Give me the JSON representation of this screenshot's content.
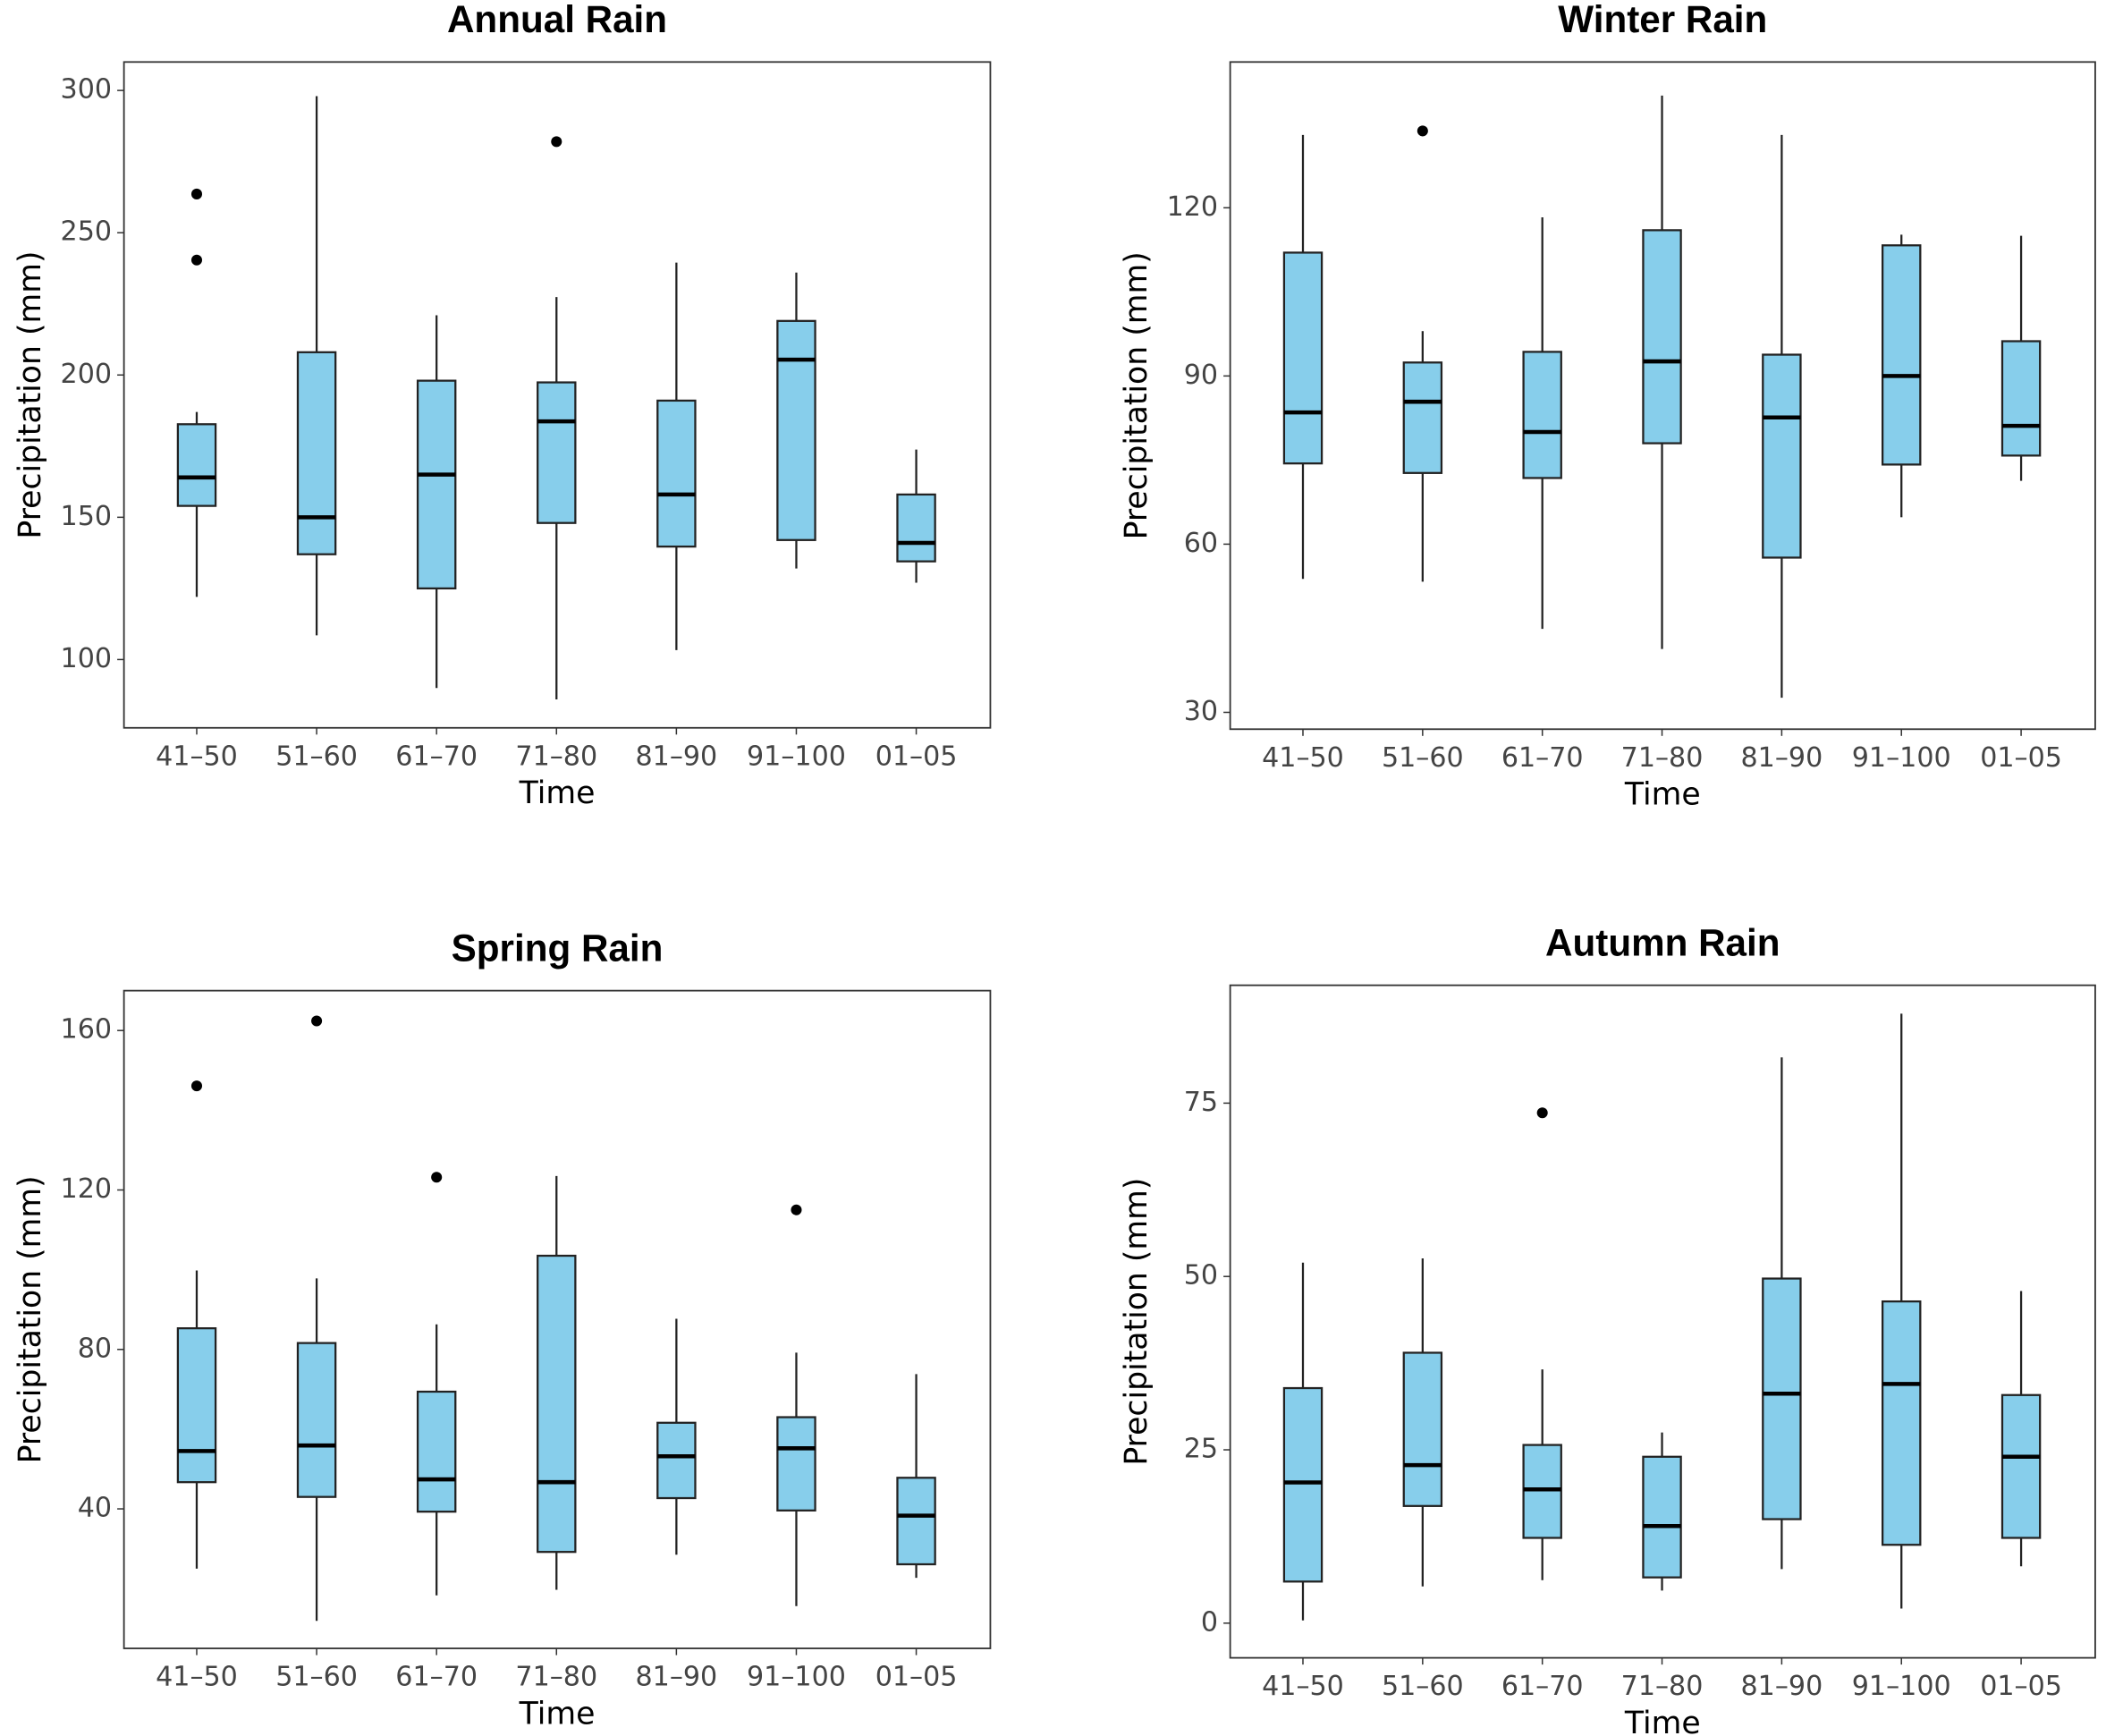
{
  "chart_data": [
    {
      "type": "box",
      "title": "Annual Rain",
      "x_label": "Time",
      "y_label": "Precipitation (mm)",
      "color": "#87ceeb",
      "categories": [
        "41–50",
        "51–60",
        "61–70",
        "71–80",
        "81–90",
        "91–100",
        "01–05"
      ],
      "whisker_low": [
        122,
        108.5,
        90,
        86,
        103.3,
        132,
        127
      ],
      "q1": [
        154,
        137,
        125,
        148,
        139.7,
        142,
        134.5
      ],
      "median": [
        164,
        150,
        165,
        183.7,
        158,
        205.4,
        141
      ],
      "q3": [
        182.7,
        208,
        198,
        197.4,
        191,
        219,
        158
      ],
      "whisker_high": [
        187,
        298,
        221,
        227.4,
        239.5,
        236,
        173.8
      ],
      "outliers": [
        [
          263.6,
          240.4
        ],
        [],
        [],
        [
          282
        ],
        [],
        [],
        []
      ],
      "ylim": [
        76,
        310
      ],
      "yticks": [
        100,
        150,
        200,
        250,
        300
      ]
    },
    {
      "type": "box",
      "title": "Winter Rain",
      "x_label": "Time",
      "y_label": "Precipitation (mm)",
      "color": "#87ceeb",
      "categories": [
        "41–50",
        "51–60",
        "61–70",
        "71–80",
        "81–90",
        "91–100",
        "01–05"
      ],
      "whisker_low": [
        53.8,
        53.3,
        44.9,
        41.3,
        32.6,
        64.8,
        71.3
      ],
      "q1": [
        74.4,
        72.7,
        71.8,
        78,
        57.6,
        74.2,
        75.8
      ],
      "median": [
        83.5,
        85.4,
        80,
        92.6,
        82.6,
        90,
        81.1
      ],
      "q3": [
        112,
        92.4,
        94.3,
        116,
        93.8,
        113.3,
        96.2
      ],
      "whisker_high": [
        133,
        98,
        118.3,
        140,
        133,
        115.2,
        115
      ],
      "outliers": [
        [],
        [
          133.7
        ],
        [],
        [],
        [],
        [],
        []
      ],
      "ylim": [
        27,
        146
      ],
      "yticks": [
        30,
        60,
        90,
        120
      ]
    },
    {
      "type": "box",
      "title": "Spring Rain",
      "x_label": "Time",
      "y_label": "Precipitation (mm)",
      "color": "#87ceeb",
      "categories": [
        "41–50",
        "51–60",
        "61–70",
        "71–80",
        "81–90",
        "91–100",
        "01–05"
      ],
      "whisker_low": [
        25,
        11.9,
        18.3,
        19.7,
        28.5,
        15.6,
        22.7
      ],
      "q1": [
        46.7,
        43,
        39.3,
        29.2,
        42.7,
        39.6,
        26.1
      ],
      "median": [
        54.5,
        55.9,
        47.4,
        46.7,
        53.2,
        55.2,
        38.3
      ],
      "q3": [
        85.3,
        81.6,
        69.4,
        103.5,
        61.6,
        63,
        47.8
      ],
      "whisker_high": [
        99.8,
        97.8,
        86.3,
        123.5,
        87.7,
        79.2,
        73.8
      ],
      "outliers": [
        [
          146.1
        ],
        [
          162.4
        ],
        [
          123.2
        ],
        [],
        [],
        [
          115
        ],
        []
      ],
      "ylim": [
        5,
        170
      ],
      "yticks": [
        40,
        80,
        120,
        160
      ]
    },
    {
      "type": "box",
      "title": "Autumn Rain",
      "x_label": "Time",
      "y_label": "Precipitation (mm)",
      "color": "#87ceeb",
      "categories": [
        "41–50",
        "51–60",
        "61–70",
        "71–80",
        "81–90",
        "91–100",
        "01–05"
      ],
      "whisker_low": [
        0.4,
        5.3,
        6.2,
        4.7,
        7.8,
        2.1,
        8.2
      ],
      "q1": [
        6,
        16.9,
        12.3,
        6.6,
        15,
        11.3,
        12.3
      ],
      "median": [
        20.3,
        22.8,
        19.3,
        14,
        33.1,
        34.5,
        24
      ],
      "q3": [
        33.9,
        39,
        25.7,
        24,
        49.7,
        46.4,
        32.9
      ],
      "whisker_high": [
        52,
        52.6,
        36.6,
        27.5,
        81.6,
        87.9,
        47.9
      ],
      "outliers": [
        [],
        [],
        [
          73.6
        ],
        [],
        [],
        [],
        []
      ],
      "ylim": [
        -5,
        92
      ],
      "yticks": [
        0,
        25,
        50,
        75
      ]
    }
  ]
}
